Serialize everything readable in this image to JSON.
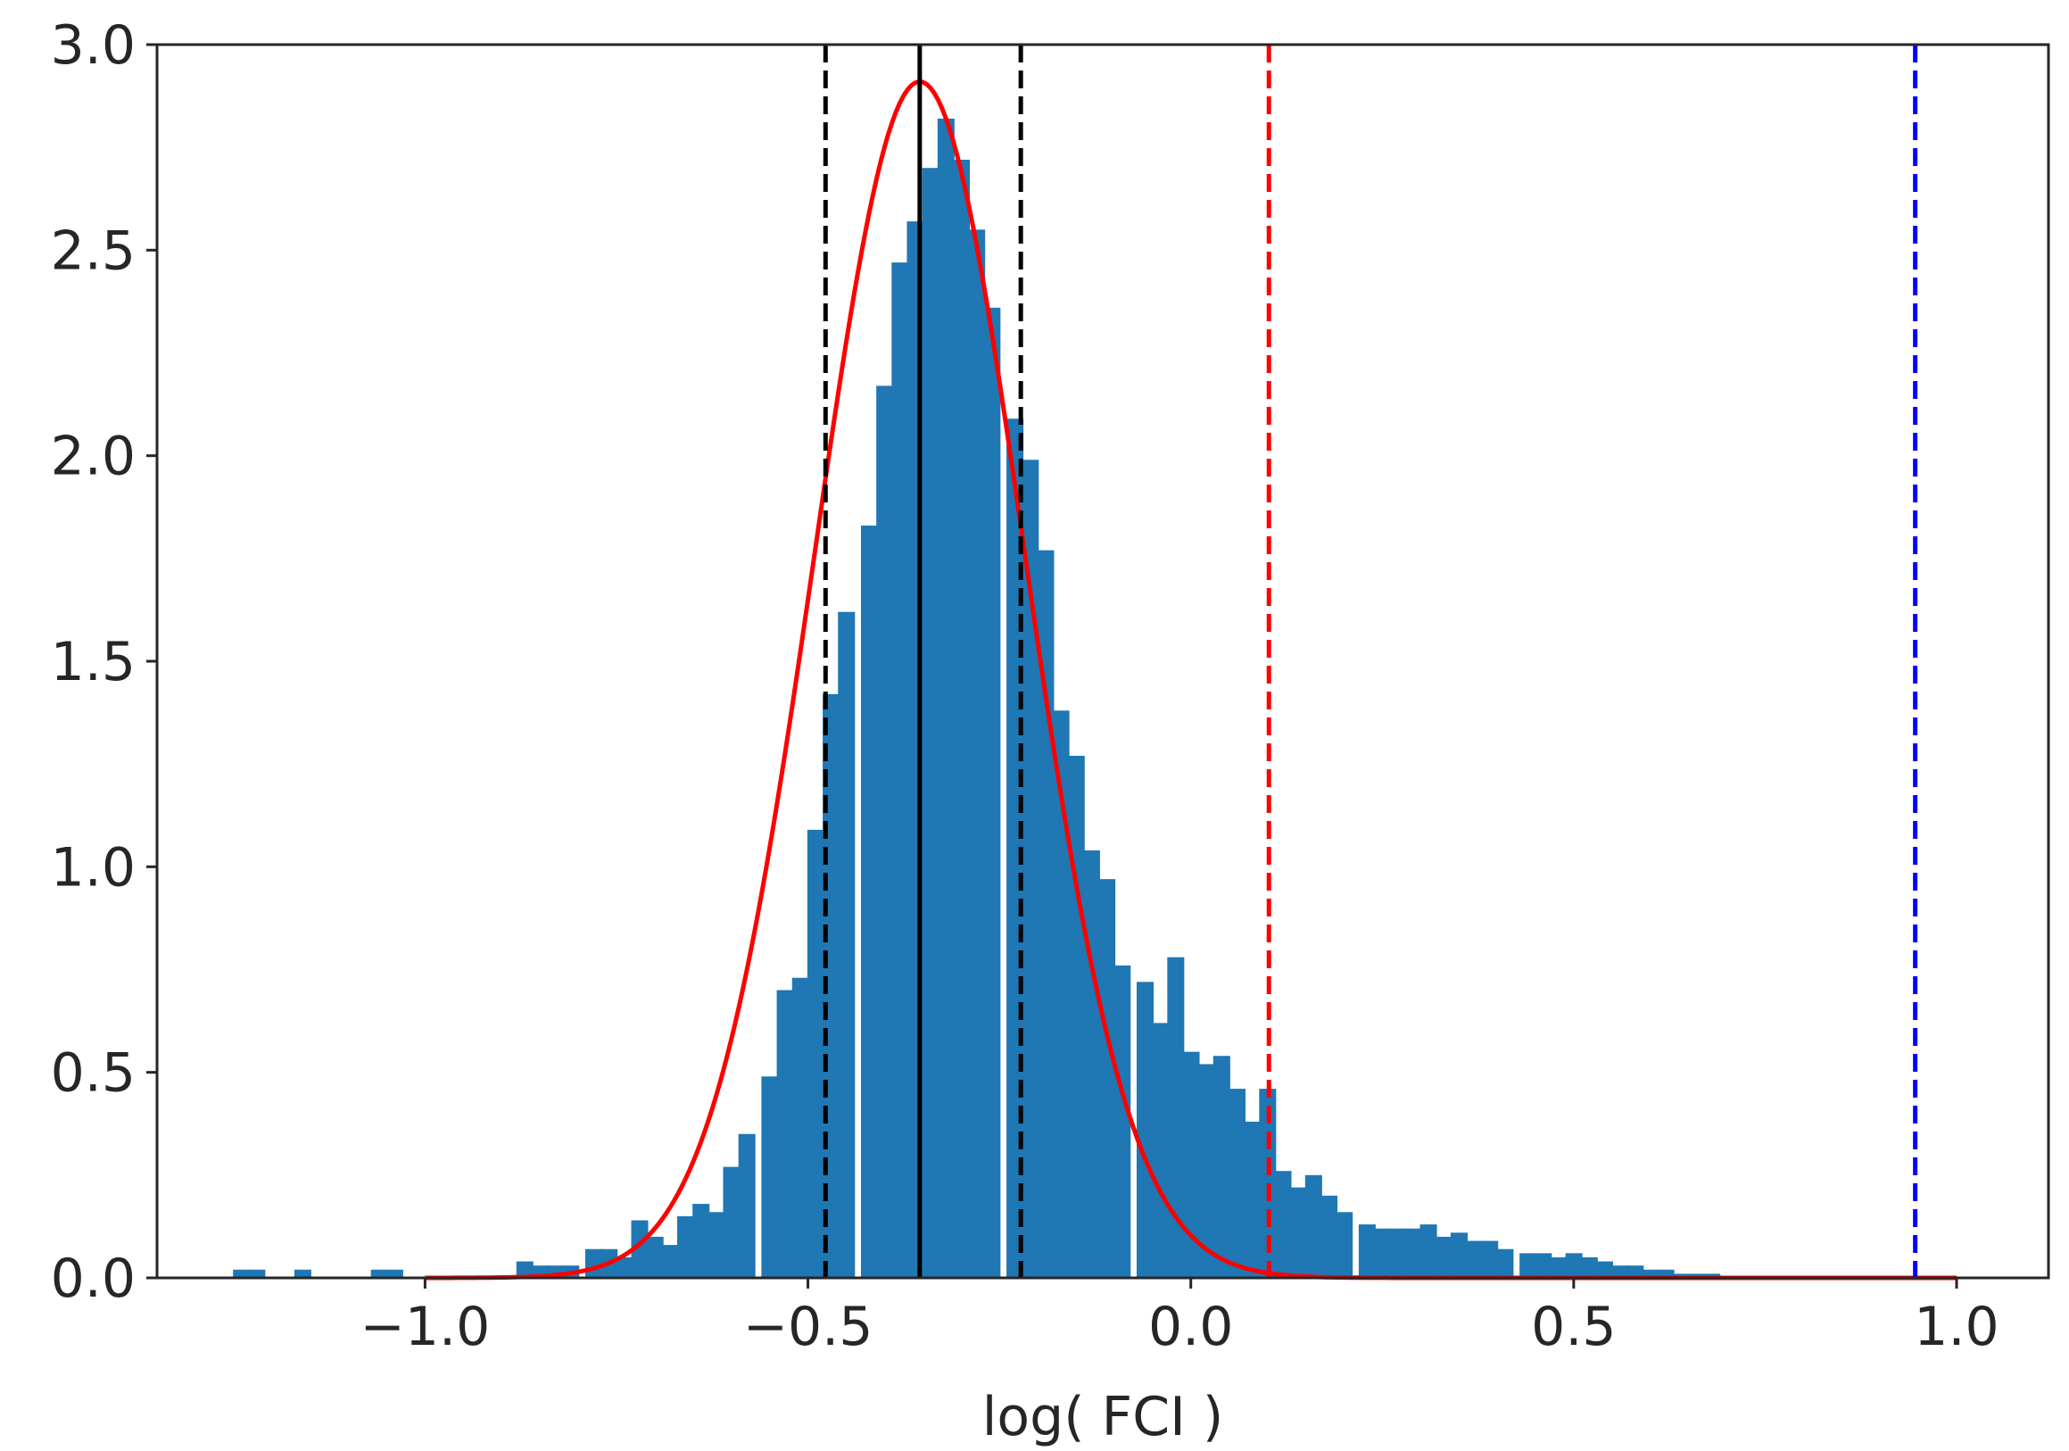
{
  "chart_data": {
    "type": "bar",
    "xlabel": "log( FCI )",
    "ylabel": "",
    "xlim": [
      -1.35,
      1.12
    ],
    "ylim": [
      0.0,
      3.0
    ],
    "xticks": [
      -1.0,
      -0.5,
      0.0,
      0.5,
      1.0
    ],
    "xtick_labels": [
      "−1.0",
      "−0.5",
      "0.0",
      "0.5",
      "1.0"
    ],
    "yticks": [
      0.0,
      0.5,
      1.0,
      1.5,
      2.0,
      2.5,
      3.0
    ],
    "ytick_labels": [
      "0.0",
      "0.5",
      "1.0",
      "1.5",
      "2.0",
      "2.5",
      "3.0"
    ],
    "grid": false,
    "colors": {
      "bars": "#1f77b4",
      "fit": "#ff0000",
      "median": "#000000",
      "percentile": "#000000",
      "red_marker": "#ff0000",
      "blue_marker": "#0000ff"
    },
    "histogram": {
      "bin_width": 0.0215,
      "bins": [
        {
          "x": -1.24,
          "y": 0.02
        },
        {
          "x": -1.22,
          "y": 0.02
        },
        {
          "x": -1.16,
          "y": 0.02
        },
        {
          "x": -1.06,
          "y": 0.02
        },
        {
          "x": -1.04,
          "y": 0.02
        },
        {
          "x": -0.87,
          "y": 0.04
        },
        {
          "x": -0.85,
          "y": 0.03
        },
        {
          "x": -0.83,
          "y": 0.03
        },
        {
          "x": -0.81,
          "y": 0.03
        },
        {
          "x": -0.78,
          "y": 0.07
        },
        {
          "x": -0.76,
          "y": 0.07
        },
        {
          "x": -0.74,
          "y": 0.05
        },
        {
          "x": -0.72,
          "y": 0.14
        },
        {
          "x": -0.7,
          "y": 0.1
        },
        {
          "x": -0.68,
          "y": 0.08
        },
        {
          "x": -0.66,
          "y": 0.15
        },
        {
          "x": -0.64,
          "y": 0.18
        },
        {
          "x": -0.62,
          "y": 0.16
        },
        {
          "x": -0.6,
          "y": 0.27
        },
        {
          "x": -0.58,
          "y": 0.35
        },
        {
          "x": -0.55,
          "y": 0.49
        },
        {
          "x": -0.53,
          "y": 0.7
        },
        {
          "x": -0.51,
          "y": 0.73
        },
        {
          "x": -0.49,
          "y": 1.09
        },
        {
          "x": -0.47,
          "y": 1.42
        },
        {
          "x": -0.45,
          "y": 1.62
        },
        {
          "x": -0.42,
          "y": 1.83
        },
        {
          "x": -0.4,
          "y": 2.17
        },
        {
          "x": -0.38,
          "y": 2.47
        },
        {
          "x": -0.36,
          "y": 2.57
        },
        {
          "x": -0.34,
          "y": 2.7
        },
        {
          "x": -0.32,
          "y": 2.82
        },
        {
          "x": -0.3,
          "y": 2.72
        },
        {
          "x": -0.28,
          "y": 2.55
        },
        {
          "x": -0.26,
          "y": 2.36
        },
        {
          "x": -0.23,
          "y": 2.09
        },
        {
          "x": -0.21,
          "y": 1.99
        },
        {
          "x": -0.19,
          "y": 1.77
        },
        {
          "x": -0.17,
          "y": 1.38
        },
        {
          "x": -0.15,
          "y": 1.27
        },
        {
          "x": -0.13,
          "y": 1.04
        },
        {
          "x": -0.11,
          "y": 0.97
        },
        {
          "x": -0.09,
          "y": 0.76
        },
        {
          "x": -0.06,
          "y": 0.72
        },
        {
          "x": -0.04,
          "y": 0.62
        },
        {
          "x": -0.02,
          "y": 0.78
        },
        {
          "x": 0.0,
          "y": 0.55
        },
        {
          "x": 0.02,
          "y": 0.52
        },
        {
          "x": 0.04,
          "y": 0.54
        },
        {
          "x": 0.06,
          "y": 0.46
        },
        {
          "x": 0.08,
          "y": 0.38
        },
        {
          "x": 0.1,
          "y": 0.46
        },
        {
          "x": 0.12,
          "y": 0.26
        },
        {
          "x": 0.14,
          "y": 0.22
        },
        {
          "x": 0.16,
          "y": 0.25
        },
        {
          "x": 0.18,
          "y": 0.2
        },
        {
          "x": 0.2,
          "y": 0.16
        },
        {
          "x": 0.23,
          "y": 0.13
        },
        {
          "x": 0.25,
          "y": 0.12
        },
        {
          "x": 0.27,
          "y": 0.12
        },
        {
          "x": 0.29,
          "y": 0.12
        },
        {
          "x": 0.31,
          "y": 0.13
        },
        {
          "x": 0.33,
          "y": 0.1
        },
        {
          "x": 0.35,
          "y": 0.11
        },
        {
          "x": 0.37,
          "y": 0.09
        },
        {
          "x": 0.39,
          "y": 0.09
        },
        {
          "x": 0.41,
          "y": 0.07
        },
        {
          "x": 0.44,
          "y": 0.06
        },
        {
          "x": 0.46,
          "y": 0.06
        },
        {
          "x": 0.48,
          "y": 0.05
        },
        {
          "x": 0.5,
          "y": 0.06
        },
        {
          "x": 0.52,
          "y": 0.05
        },
        {
          "x": 0.54,
          "y": 0.04
        },
        {
          "x": 0.56,
          "y": 0.03
        },
        {
          "x": 0.58,
          "y": 0.03
        },
        {
          "x": 0.6,
          "y": 0.02
        },
        {
          "x": 0.62,
          "y": 0.02
        },
        {
          "x": 0.64,
          "y": 0.01
        },
        {
          "x": 0.66,
          "y": 0.01
        },
        {
          "x": 0.68,
          "y": 0.01
        }
      ]
    },
    "fit_curve": {
      "type": "gaussian",
      "mean": -0.354,
      "sigma": 0.137,
      "amplitude": 2.91,
      "x_range": [
        -1.0,
        1.0
      ]
    },
    "vertical_lines": [
      {
        "x": -0.354,
        "style": "solid",
        "color": "#000000"
      },
      {
        "x": -0.477,
        "style": "dashed",
        "color": "#000000"
      },
      {
        "x": -0.222,
        "style": "dashed",
        "color": "#000000"
      },
      {
        "x": 0.102,
        "style": "dashed",
        "color": "#ff0000"
      },
      {
        "x": 0.946,
        "style": "dashed",
        "color": "#0000ff"
      }
    ]
  }
}
